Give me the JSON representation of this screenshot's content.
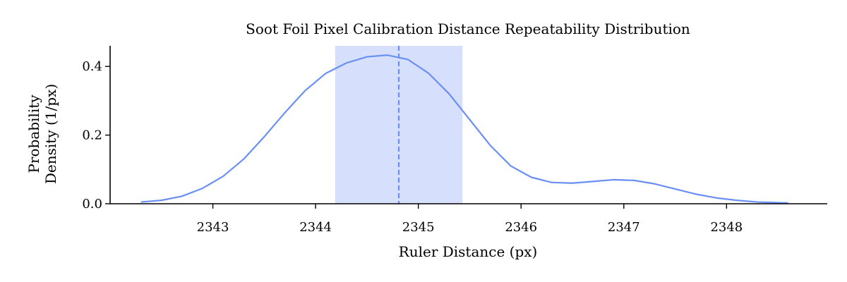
{
  "chart_data": {
    "type": "line",
    "title": "Soot Foil Pixel Calibration Distance Repeatability Distribution",
    "xlabel": "Ruler Distance (px)",
    "ylabel_lines": [
      "Probability",
      "Density (1/px)"
    ],
    "xlim": [
      2342.0,
      2348.98
    ],
    "ylim": [
      0.0,
      0.46
    ],
    "x_ticks": [
      2343,
      2344,
      2345,
      2346,
      2347,
      2348
    ],
    "x_tick_labels": [
      "2343",
      "2344",
      "2345",
      "2346",
      "2347",
      "2348"
    ],
    "y_ticks": [
      0.0,
      0.2,
      0.4
    ],
    "y_tick_labels": [
      "0.0",
      "0.2",
      "0.4"
    ],
    "grid": false,
    "series": [
      {
        "x": [
          2342.3,
          2342.5,
          2342.7,
          2342.9,
          2343.1,
          2343.3,
          2343.5,
          2343.7,
          2343.9,
          2344.1,
          2344.3,
          2344.5,
          2344.7,
          2344.9,
          2345.1,
          2345.3,
          2345.5,
          2345.7,
          2345.9,
          2346.1,
          2346.3,
          2346.5,
          2346.7,
          2346.9,
          2347.1,
          2347.3,
          2347.5,
          2347.7,
          2347.9,
          2348.1,
          2348.3,
          2348.6
        ],
        "y": [
          0.005,
          0.01,
          0.022,
          0.045,
          0.08,
          0.13,
          0.195,
          0.265,
          0.33,
          0.38,
          0.41,
          0.428,
          0.433,
          0.42,
          0.38,
          0.32,
          0.245,
          0.17,
          0.11,
          0.077,
          0.062,
          0.06,
          0.065,
          0.07,
          0.068,
          0.058,
          0.043,
          0.028,
          0.017,
          0.01,
          0.005,
          0.002
        ]
      }
    ],
    "mean_line": 2344.81,
    "shaded_band": [
      2344.19,
      2345.43
    ],
    "colors": {
      "line": "#6a8ff5",
      "band": "#d6e0fd",
      "axis": "#000000"
    }
  }
}
